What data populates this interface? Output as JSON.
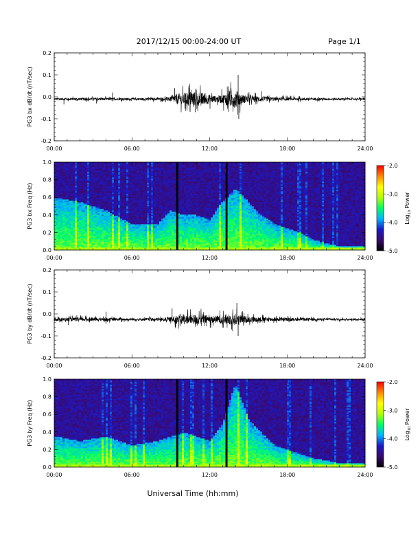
{
  "header": {
    "title": "2017/12/15   00:00-24:00 UT",
    "page_label": "Page 1/1"
  },
  "footer": {
    "xlabel": "Universal Time (hh:mm)"
  },
  "colorbar": {
    "title": "Log10 Power",
    "tick_labels": [
      "-2.0",
      "-3.0",
      "-4.0",
      "-5.0"
    ],
    "range": [
      -5.0,
      -2.0
    ],
    "colormap": [
      "#000000",
      "#3b0a6e",
      "#1a1ac8",
      "#00b4ff",
      "#00ff66",
      "#b4ff00",
      "#ffff00",
      "#ff8800",
      "#ff0000"
    ]
  },
  "chart_data": [
    {
      "type": "line",
      "ylabel": "PG3 bx dB/dt (nT/sec)",
      "xlim": [
        0,
        24
      ],
      "ylim": [
        -0.2,
        0.2
      ],
      "x_tick_labels": [
        "00:00",
        "06:00",
        "12:00",
        "18:00",
        "24:00"
      ],
      "y_tick_labels": [
        "0.2",
        "0.1",
        "0.0",
        "-0.1",
        "-0.2"
      ],
      "baseline": -0.01,
      "envelope": {
        "hours": [
          0,
          2,
          4,
          6,
          8,
          9,
          9.5,
          10,
          10.5,
          11,
          11.5,
          12,
          12.5,
          13,
          13.5,
          14,
          14.5,
          15,
          16,
          17,
          18,
          20,
          22,
          24
        ],
        "amplitude": [
          0.006,
          0.008,
          0.008,
          0.006,
          0.008,
          0.015,
          0.035,
          0.04,
          0.05,
          0.045,
          0.04,
          0.03,
          0.02,
          0.03,
          0.05,
          0.06,
          0.03,
          0.02,
          0.018,
          0.012,
          0.01,
          0.008,
          0.006,
          0.006
        ]
      },
      "spikes": [
        {
          "hour": 0.75,
          "value": -0.035
        },
        {
          "hour": 3.25,
          "value": -0.03
        },
        {
          "hour": 4.5,
          "value": 0.02
        },
        {
          "hour": 9.3,
          "value": 0.04
        },
        {
          "hour": 10.4,
          "value": 0.04
        },
        {
          "hour": 10.9,
          "value": -0.07
        },
        {
          "hour": 14.2,
          "value": 0.1
        },
        {
          "hour": 14.25,
          "value": -0.1
        },
        {
          "hour": 16.0,
          "value": 0.025
        }
      ]
    },
    {
      "type": "heatmap",
      "ylabel": "PG3 bx Freq (Hz)",
      "xlim": [
        0,
        24
      ],
      "ylim": [
        0,
        1.0
      ],
      "x_tick_labels": [
        "00:00",
        "06:00",
        "12:00",
        "18:00",
        "24:00"
      ],
      "y_tick_labels": [
        "1.0",
        "0.8",
        "0.6",
        "0.4",
        "0.2",
        "0.0"
      ],
      "data_gaps_hours": [
        9.5,
        13.3
      ],
      "activity": {
        "hours": [
          0,
          2,
          4,
          6,
          8,
          9,
          10,
          11,
          12,
          13,
          14,
          15,
          16,
          17,
          18,
          19,
          20,
          21,
          22,
          24
        ],
        "extent_hz": [
          0.6,
          0.55,
          0.45,
          0.3,
          0.3,
          0.45,
          0.4,
          0.4,
          0.35,
          0.55,
          0.7,
          0.55,
          0.4,
          0.3,
          0.25,
          0.2,
          0.12,
          0.08,
          0.05,
          0.05
        ]
      }
    },
    {
      "type": "line",
      "ylabel": "PG3 by dB/dt (nT/sec)",
      "xlim": [
        0,
        24
      ],
      "ylim": [
        -0.2,
        0.2
      ],
      "x_tick_labels": [
        "00:00",
        "06:00",
        "12:00",
        "18:00",
        "24:00"
      ],
      "y_tick_labels": [
        "0.2",
        "0.1",
        "0.0",
        "-0.1",
        "-0.2"
      ],
      "baseline": -0.025,
      "envelope": {
        "hours": [
          0,
          2,
          4,
          6,
          8,
          9,
          9.5,
          10,
          10.5,
          11,
          11.5,
          12,
          12.5,
          13,
          13.5,
          14,
          14.5,
          15,
          16,
          17,
          18,
          20,
          22,
          24
        ],
        "amplitude": [
          0.01,
          0.012,
          0.01,
          0.008,
          0.01,
          0.015,
          0.03,
          0.025,
          0.03,
          0.035,
          0.03,
          0.025,
          0.025,
          0.03,
          0.035,
          0.04,
          0.025,
          0.02,
          0.015,
          0.012,
          0.01,
          0.008,
          0.006,
          0.006
        ]
      },
      "spikes": [
        {
          "hour": 1.1,
          "value": -0.05
        },
        {
          "hour": 4.0,
          "value": 0.01
        },
        {
          "hour": 4.0,
          "value": -0.045
        },
        {
          "hour": 9.1,
          "value": 0.025
        },
        {
          "hour": 10.3,
          "value": 0.02
        },
        {
          "hour": 14.1,
          "value": 0.05
        },
        {
          "hour": 14.2,
          "value": -0.1
        },
        {
          "hour": 13.7,
          "value": -0.07
        }
      ]
    },
    {
      "type": "heatmap",
      "ylabel": "PG3 by Freq (Hz)",
      "xlim": [
        0,
        24
      ],
      "ylim": [
        0,
        1.0
      ],
      "x_tick_labels": [
        "00:00",
        "06:00",
        "12:00",
        "18:00",
        "24:00"
      ],
      "y_tick_labels": [
        "1.0",
        "0.8",
        "0.6",
        "0.4",
        "0.2",
        "0.0"
      ],
      "data_gaps_hours": [
        9.5,
        13.3
      ],
      "activity": {
        "hours": [
          0,
          2,
          4,
          6,
          8,
          9,
          10,
          11,
          12,
          13,
          14,
          15,
          16,
          17,
          18,
          19,
          20,
          21,
          22,
          24
        ],
        "extent_hz": [
          0.35,
          0.3,
          0.35,
          0.25,
          0.3,
          0.35,
          0.4,
          0.35,
          0.3,
          0.5,
          0.95,
          0.55,
          0.4,
          0.25,
          0.2,
          0.15,
          0.1,
          0.08,
          0.05,
          0.05
        ]
      }
    }
  ]
}
